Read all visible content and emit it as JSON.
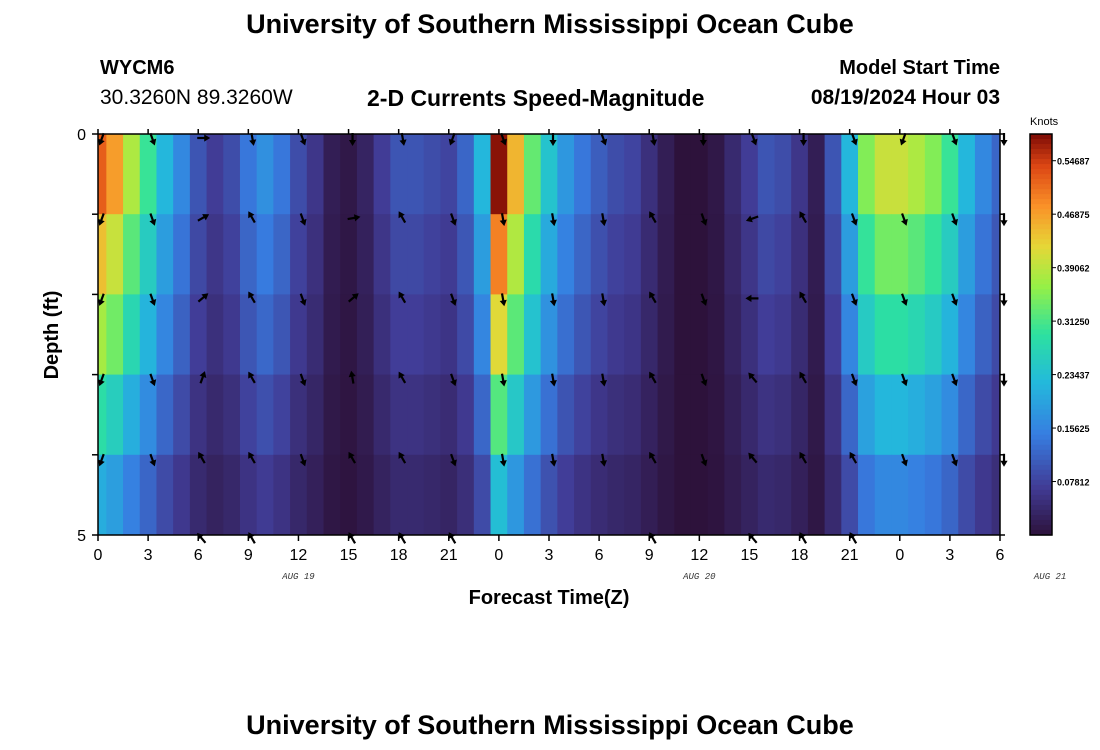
{
  "header": {
    "title": "University of Southern Mississippi Ocean Cube",
    "station": "WYCM6",
    "coords": "30.3260N  89.3260W",
    "subtitle": "2-D Currents Speed-Magnitude",
    "model_label": "Model Start Time",
    "model_time": "08/19/2024 Hour 03"
  },
  "footer": {
    "title": "University of Southern Mississippi Ocean Cube"
  },
  "chart_data": {
    "type": "heatmap",
    "xlabel": "Forecast Time(Z)",
    "ylabel": "Depth (ft)",
    "x_ticks": [
      "0",
      "3",
      "6",
      "9",
      "12",
      "15",
      "18",
      "21",
      "0",
      "3",
      "6",
      "9",
      "12",
      "15",
      "18",
      "21",
      "0",
      "3",
      "6"
    ],
    "date_labels": [
      {
        "text": "AUG 19",
        "hour_index": 12
      },
      {
        "text": "AUG 20",
        "hour_index": 36
      },
      {
        "text": "AUG 21",
        "hour_index": 57
      }
    ],
    "y_ticks": [
      "0",
      "5"
    ],
    "ylim": [
      0,
      5
    ],
    "x_range_hours": [
      0,
      54
    ],
    "colorbar": {
      "label": "Knots",
      "ticks": [
        "0.54687",
        "0.46875",
        "0.39062",
        "0.31250",
        "0.23437",
        "0.15625",
        "0.07812"
      ],
      "min": 0,
      "max": 0.5859
    },
    "depth_layers": 5,
    "speed_profile_hours": [
      0,
      1,
      2,
      3,
      4,
      5,
      6,
      7,
      8,
      9,
      10,
      11,
      12,
      13,
      14,
      15,
      16,
      17,
      18,
      19,
      20,
      21,
      22,
      23,
      24,
      25,
      26,
      27,
      28,
      29,
      30,
      31,
      32,
      33,
      34,
      35,
      36,
      37,
      38,
      39,
      40,
      41,
      42,
      43,
      44,
      45,
      46,
      47,
      48,
      49,
      50,
      51,
      52,
      53,
      54
    ],
    "speed_profile_surface": [
      0.52,
      0.47,
      0.38,
      0.3,
      0.22,
      0.16,
      0.1,
      0.07,
      0.09,
      0.14,
      0.17,
      0.14,
      0.09,
      0.06,
      0.02,
      0.01,
      0.03,
      0.07,
      0.1,
      0.1,
      0.09,
      0.08,
      0.12,
      0.22,
      0.58,
      0.45,
      0.33,
      0.24,
      0.18,
      0.14,
      0.11,
      0.09,
      0.08,
      0.05,
      0.02,
      0.0,
      0.0,
      0.01,
      0.04,
      0.07,
      0.1,
      0.09,
      0.06,
      0.02,
      0.1,
      0.22,
      0.35,
      0.4,
      0.4,
      0.38,
      0.35,
      0.3,
      0.22,
      0.16,
      0.12
    ],
    "depth_factors": [
      1.0,
      0.85,
      0.72,
      0.55,
      0.4
    ],
    "arrow_directions_deg": [
      [
        200,
        160,
        90,
        170,
        160,
        180,
        170,
        200,
        160,
        180,
        160,
        170,
        180,
        160,
        180,
        160,
        200,
        160,
        180
      ],
      [
        200,
        160,
        60,
        330,
        160,
        80,
        330,
        160,
        170,
        170,
        170,
        330,
        160,
        250,
        330,
        160,
        160,
        160,
        180
      ],
      [
        200,
        160,
        50,
        330,
        160,
        50,
        330,
        160,
        170,
        170,
        170,
        330,
        160,
        270,
        330,
        160,
        160,
        160,
        180
      ],
      [
        200,
        160,
        20,
        330,
        160,
        350,
        330,
        160,
        170,
        170,
        170,
        330,
        160,
        320,
        330,
        160,
        160,
        160,
        180
      ],
      [
        200,
        160,
        330,
        330,
        160,
        330,
        330,
        160,
        170,
        170,
        170,
        330,
        160,
        320,
        330,
        330,
        160,
        160,
        180
      ],
      [
        null,
        null,
        320,
        330,
        null,
        330,
        330,
        330,
        null,
        null,
        null,
        330,
        null,
        320,
        330,
        330,
        null,
        null,
        null
      ]
    ]
  }
}
